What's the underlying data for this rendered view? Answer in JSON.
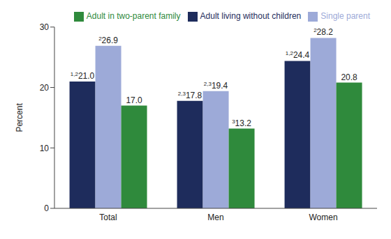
{
  "chart_data": {
    "type": "bar",
    "categories": [
      "Total",
      "Men",
      "Women"
    ],
    "y_label": "Percent",
    "ylim": [
      0,
      30
    ],
    "yticks": [
      0,
      10,
      20,
      30
    ],
    "grid": false,
    "legend": "top-right",
    "data_labels": true,
    "series": [
      {
        "name": "Adult living without children",
        "color": "#1e2c5c",
        "values": [
          21.0,
          17.8,
          24.4
        ],
        "value_labels": [
          "21.0",
          "17.8",
          "24.4"
        ],
        "footnotes": [
          "1,2",
          "2,3",
          "1,2"
        ]
      },
      {
        "name": "Single parent",
        "color": "#9daad8",
        "values": [
          26.9,
          19.4,
          28.2
        ],
        "value_labels": [
          "26.9",
          "19.4",
          "28.2"
        ],
        "footnotes": [
          "2",
          "2,3",
          "2"
        ]
      },
      {
        "name": "Adult in two-parent family",
        "color": "#2f8a3c",
        "values": [
          17.0,
          13.2,
          20.8
        ],
        "value_labels": [
          "17.0",
          "13.2",
          "20.8"
        ],
        "footnotes": [
          null,
          "3",
          null
        ]
      }
    ]
  }
}
